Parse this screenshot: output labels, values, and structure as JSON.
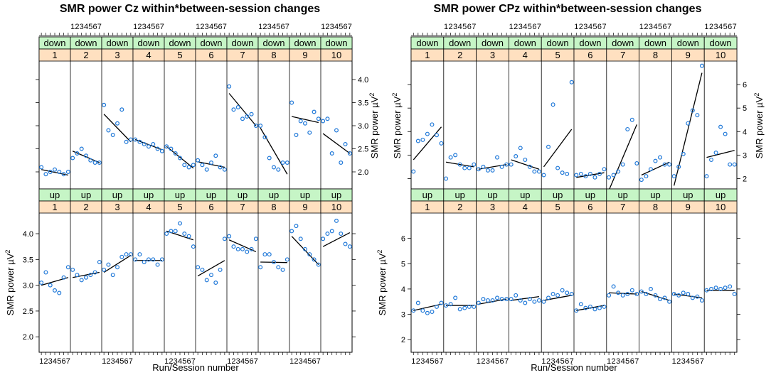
{
  "chart_data": [
    {
      "type": "scatter",
      "title": "SMR power Cz within*between-session changes",
      "xlabel": "Run/Session number",
      "ylabel": "SMR power µV²",
      "x_ticks": [
        "1",
        "2",
        "3",
        "4",
        "5",
        "6",
        "7"
      ],
      "panels": [
        {
          "group": "down",
          "ylim": [
            1.6,
            4.4
          ],
          "y_ticks": [
            "2.0",
            "2.5",
            "3.0",
            "3.5",
            "4.0"
          ],
          "axis_side": "right",
          "sessions": [
            {
              "session": "1",
              "values": [
                2.1,
                1.95,
                2.0,
                2.05,
                2.0,
                1.95,
                2.0
              ],
              "fit": [
                2.05,
                1.93
              ]
            },
            {
              "session": "2",
              "values": [
                2.3,
                2.4,
                2.5,
                2.35,
                2.25,
                2.2,
                2.2
              ],
              "fit": [
                2.45,
                2.2
              ]
            },
            {
              "session": "3",
              "values": [
                3.45,
                2.9,
                2.8,
                3.05,
                3.35,
                2.65,
                2.7
              ],
              "fit": [
                3.25,
                2.65
              ]
            },
            {
              "session": "4",
              "values": [
                2.7,
                2.65,
                2.6,
                2.55,
                2.6,
                2.5,
                2.45
              ],
              "fit": [
                2.7,
                2.48
              ]
            },
            {
              "session": "5",
              "values": [
                2.55,
                2.5,
                2.4,
                2.3,
                2.15,
                2.1,
                2.15
              ],
              "fit": [
                2.55,
                2.08
              ]
            },
            {
              "session": "6",
              "values": [
                2.25,
                2.15,
                2.05,
                2.2,
                2.35,
                2.1,
                2.05
              ],
              "fit": [
                2.22,
                2.1
              ]
            },
            {
              "session": "7",
              "values": [
                3.85,
                3.35,
                3.4,
                3.15,
                3.2,
                3.25,
                3.0
              ],
              "fit": [
                3.7,
                3.0
              ]
            },
            {
              "session": "8",
              "values": [
                3.0,
                2.75,
                2.3,
                2.1,
                2.05,
                2.2,
                2.2
              ],
              "fit": [
                2.95,
                1.95
              ]
            },
            {
              "session": "9",
              "values": [
                3.5,
                2.8,
                3.1,
                3.05,
                2.85,
                3.3,
                3.15
              ],
              "fit": [
                3.2,
                3.07
              ]
            },
            {
              "session": "10",
              "values": [
                3.1,
                3.15,
                2.4,
                2.9,
                2.2,
                2.6,
                2.4
              ],
              "fit": [
                2.83,
                2.4
              ]
            }
          ]
        },
        {
          "group": "up",
          "ylim": [
            1.7,
            4.4
          ],
          "y_ticks": [
            "2.0",
            "2.5",
            "3.0",
            "3.5",
            "4.0"
          ],
          "axis_side": "left",
          "sessions": [
            {
              "session": "1",
              "values": [
                3.05,
                3.25,
                3.0,
                2.9,
                2.85,
                3.15,
                3.35
              ],
              "fit": [
                3.0,
                3.15
              ]
            },
            {
              "session": "2",
              "values": [
                3.3,
                3.2,
                3.1,
                3.15,
                3.2,
                3.25,
                3.45
              ],
              "fit": [
                3.15,
                3.25
              ]
            },
            {
              "session": "3",
              "values": [
                3.3,
                3.4,
                3.2,
                3.35,
                3.55,
                3.6,
                3.6
              ],
              "fit": [
                3.25,
                3.58
              ]
            },
            {
              "session": "4",
              "values": [
                3.5,
                3.6,
                3.45,
                3.5,
                3.5,
                3.4,
                3.5
              ],
              "fit": [
                3.48,
                3.48
              ]
            },
            {
              "session": "5",
              "values": [
                4.0,
                4.05,
                4.05,
                4.2,
                4.0,
                3.95,
                3.75
              ],
              "fit": [
                4.05,
                3.88
              ]
            },
            {
              "session": "6",
              "values": [
                3.35,
                3.3,
                3.1,
                3.2,
                3.05,
                3.3,
                3.9
              ],
              "fit": [
                3.18,
                3.48
              ]
            },
            {
              "session": "7",
              "values": [
                3.95,
                3.75,
                3.7,
                3.7,
                3.65,
                3.7,
                3.9
              ],
              "fit": [
                3.88,
                3.65
              ]
            },
            {
              "session": "8",
              "values": [
                3.35,
                3.6,
                3.6,
                3.45,
                3.35,
                3.3,
                3.5
              ],
              "fit": [
                3.45,
                3.44
              ]
            },
            {
              "session": "9",
              "values": [
                4.05,
                4.15,
                3.9,
                3.7,
                3.6,
                3.5,
                3.4
              ],
              "fit": [
                3.95,
                3.4
              ]
            },
            {
              "session": "10",
              "values": [
                3.9,
                4.0,
                4.05,
                4.25,
                4.0,
                3.8,
                3.75
              ],
              "fit": [
                3.75,
                4.02
              ]
            }
          ]
        }
      ]
    },
    {
      "type": "scatter",
      "title": "SMR power CPz within*between-session changes",
      "xlabel": "Run/Session number",
      "ylabel": "SMR power µV²",
      "x_ticks": [
        "1",
        "2",
        "3",
        "4",
        "5",
        "6",
        "7"
      ],
      "panels": [
        {
          "group": "down",
          "ylim": [
            1.5,
            7.0
          ],
          "y_ticks": [
            "2",
            "3",
            "4",
            "5",
            "6"
          ],
          "axis_side": "right",
          "sessions": [
            {
              "session": "1",
              "values": [
                2.3,
                3.6,
                3.65,
                3.9,
                4.3,
                3.85,
                3.5
              ],
              "fit": [
                2.8,
                4.2
              ]
            },
            {
              "session": "2",
              "values": [
                2.0,
                2.9,
                3.0,
                2.6,
                2.45,
                2.45,
                2.6
              ],
              "fit": [
                2.7,
                2.5
              ]
            },
            {
              "session": "3",
              "values": [
                2.4,
                2.5,
                2.35,
                2.35,
                2.9,
                2.5,
                2.6
              ],
              "fit": [
                2.4,
                2.6
              ]
            },
            {
              "session": "4",
              "values": [
                2.6,
                2.95,
                3.3,
                2.8,
                2.5,
                2.3,
                2.3
              ],
              "fit": [
                2.8,
                2.4
              ]
            },
            {
              "session": "5",
              "values": [
                2.15,
                3.35,
                5.15,
                2.45,
                2.25,
                2.2,
                6.1
              ],
              "fit": [
                2.5,
                4.1
              ]
            },
            {
              "session": "6",
              "values": [
                2.15,
                2.2,
                2.1,
                2.2,
                2.05,
                2.2,
                2.4
              ],
              "fit": [
                2.05,
                2.25
              ]
            },
            {
              "session": "7",
              "values": [
                2.05,
                2.15,
                2.3,
                2.6,
                4.1,
                4.5,
                2.65
              ],
              "fit": [
                1.5,
                4.3
              ]
            },
            {
              "session": "8",
              "values": [
                1.95,
                2.1,
                2.4,
                2.75,
                2.9,
                2.6,
                2.6
              ],
              "fit": [
                2.15,
                2.7
              ]
            },
            {
              "session": "9",
              "values": [
                2.1,
                2.5,
                3.05,
                4.35,
                4.9,
                4.7,
                6.8
              ],
              "fit": [
                1.7,
                6.5
              ]
            },
            {
              "session": "10",
              "values": [
                2.1,
                2.8,
                3.1,
                4.2,
                3.9,
                2.6,
                2.6
              ],
              "fit": [
                2.9,
                3.2
              ]
            }
          ]
        },
        {
          "group": "up",
          "ylim": [
            1.5,
            7.0
          ],
          "y_ticks": [
            "2",
            "3",
            "4",
            "5",
            "6"
          ],
          "axis_side": "left",
          "sessions": [
            {
              "session": "1",
              "values": [
                3.15,
                3.45,
                3.15,
                3.05,
                3.1,
                3.3,
                3.45
              ],
              "fit": [
                3.15,
                3.4
              ]
            },
            {
              "session": "2",
              "values": [
                3.35,
                3.4,
                3.65,
                3.2,
                3.25,
                3.3,
                3.3
              ],
              "fit": [
                3.35,
                3.35
              ]
            },
            {
              "session": "3",
              "values": [
                3.45,
                3.6,
                3.55,
                3.55,
                3.65,
                3.6,
                3.6
              ],
              "fit": [
                3.4,
                3.6
              ]
            },
            {
              "session": "4",
              "values": [
                3.6,
                3.75,
                3.55,
                3.45,
                3.6,
                3.5,
                3.55
              ],
              "fit": [
                3.55,
                3.7
              ]
            },
            {
              "session": "5",
              "values": [
                3.5,
                3.65,
                3.8,
                3.75,
                3.95,
                3.85,
                3.8
              ],
              "fit": [
                3.55,
                3.75
              ]
            },
            {
              "session": "6",
              "values": [
                3.15,
                3.4,
                3.25,
                3.3,
                3.2,
                3.25,
                3.3
              ],
              "fit": [
                3.15,
                3.35
              ]
            },
            {
              "session": "7",
              "values": [
                3.75,
                4.1,
                3.85,
                3.75,
                3.8,
                3.95,
                3.8
              ],
              "fit": [
                3.85,
                3.8
              ]
            },
            {
              "session": "8",
              "values": [
                3.9,
                3.8,
                4.0,
                3.75,
                3.6,
                3.65,
                3.5
              ],
              "fit": [
                3.9,
                3.55
              ]
            },
            {
              "session": "9",
              "values": [
                3.8,
                3.75,
                3.85,
                3.8,
                3.65,
                3.7,
                3.55
              ],
              "fit": [
                3.8,
                3.65
              ]
            },
            {
              "session": "10",
              "values": [
                3.95,
                4.0,
                4.05,
                4.0,
                4.05,
                4.1,
                3.8
              ],
              "fit": [
                3.95,
                3.95
              ]
            }
          ]
        }
      ]
    }
  ],
  "colors": {
    "down_strip": "#c6f5c6",
    "up_strip": "#c6f5c6",
    "session_strip": "#ffe0c0",
    "points": "#1f78d8"
  }
}
